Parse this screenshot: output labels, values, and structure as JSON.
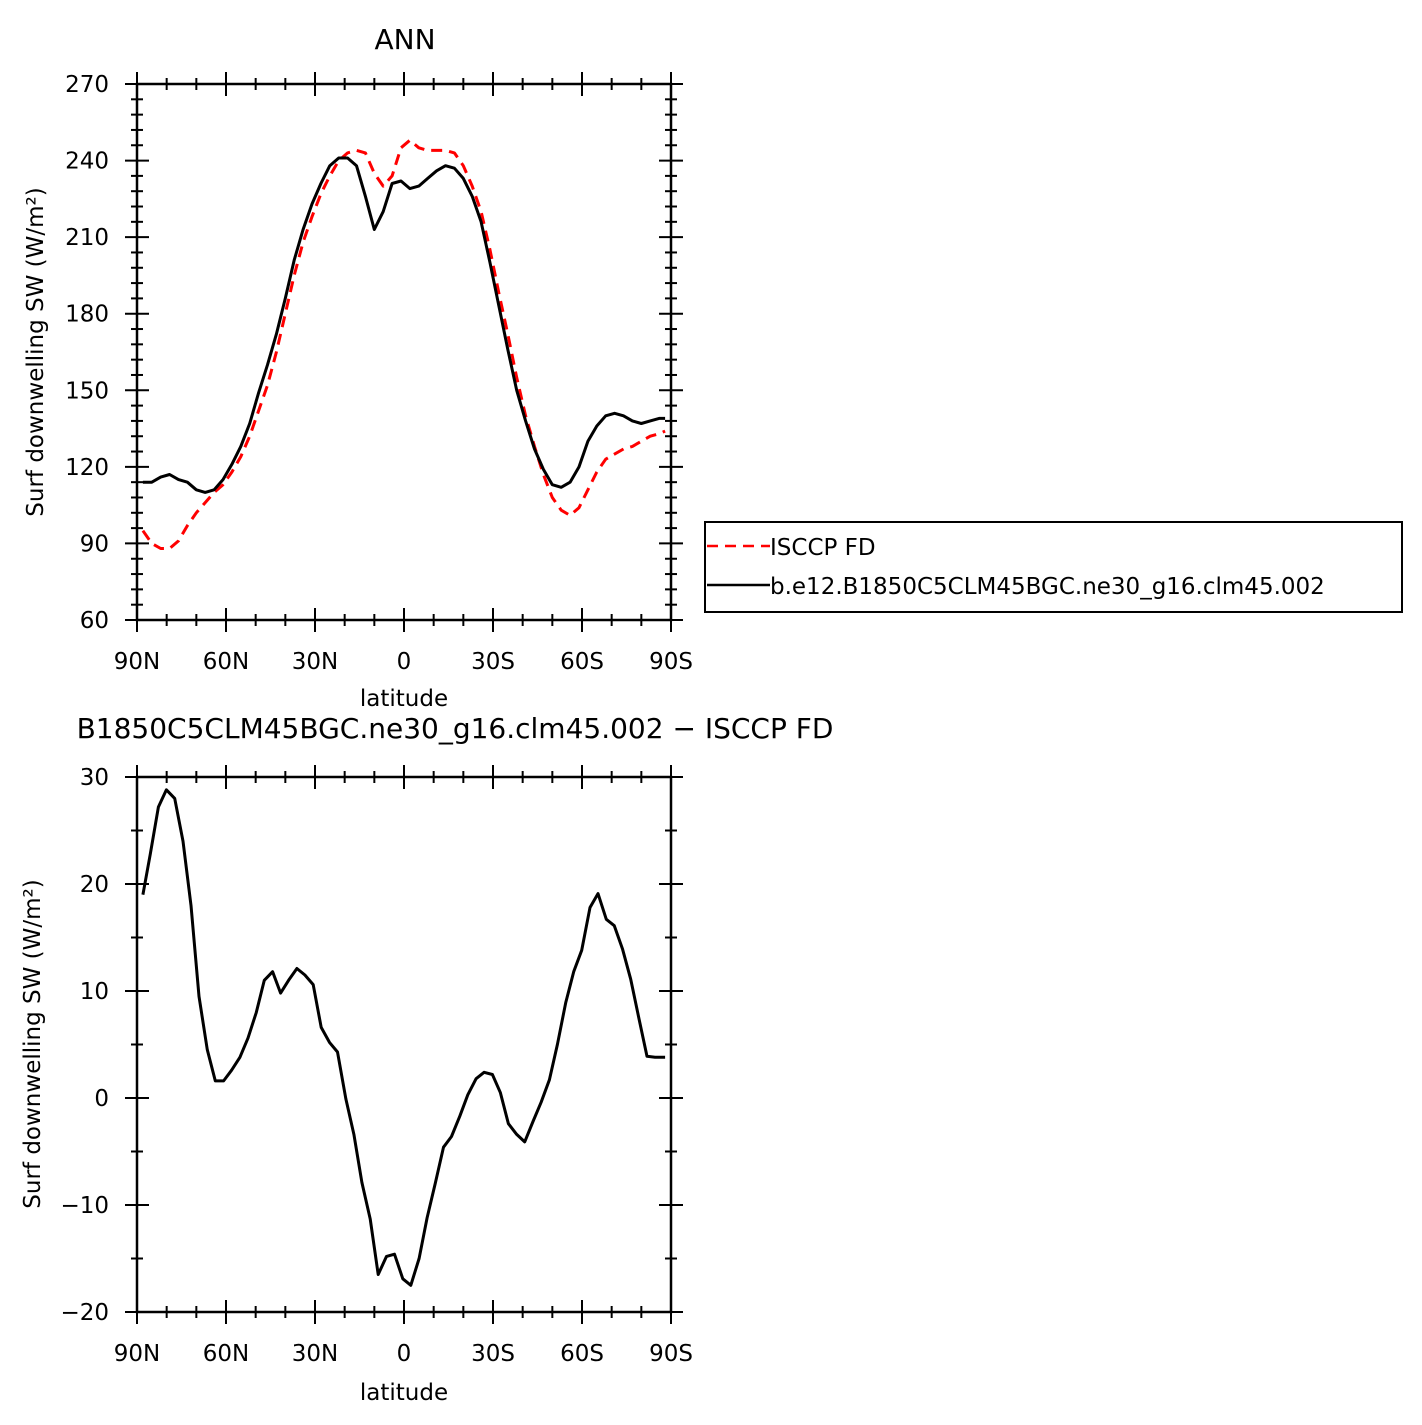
{
  "chart_data": [
    {
      "type": "line",
      "title": "ANN",
      "xlabel": "latitude",
      "ylabel": "Surf downwelling SW (W/m²)",
      "xlim": [
        -90,
        90
      ],
      "ylim": [
        60,
        270
      ],
      "x_ticks": [
        {
          "value": -90,
          "label": "90N"
        },
        {
          "value": -60,
          "label": "60N"
        },
        {
          "value": -30,
          "label": "30N"
        },
        {
          "value": 0,
          "label": "0"
        },
        {
          "value": 30,
          "label": "30S"
        },
        {
          "value": 60,
          "label": "60S"
        },
        {
          "value": 90,
          "label": "90S"
        }
      ],
      "y_ticks": [
        60,
        90,
        120,
        150,
        180,
        210,
        240,
        270
      ],
      "series": [
        {
          "name": "ISCCP FD",
          "color": "#ff0000",
          "style": "dashed",
          "x": [
            -88,
            -85,
            -82,
            -79,
            -76,
            -73,
            -70,
            -67,
            -64,
            -61,
            -58,
            -55,
            -52,
            -49,
            -46,
            -43,
            -40,
            -37,
            -34,
            -31,
            -28,
            -25,
            -22,
            -19,
            -16,
            -13,
            -10,
            -7,
            -4,
            -1,
            2,
            5,
            8,
            11,
            14,
            17,
            20,
            23,
            26,
            29,
            32,
            35,
            38,
            41,
            44,
            47,
            50,
            53,
            56,
            59,
            62,
            65,
            68,
            71,
            74,
            77,
            80,
            83,
            86,
            88
          ],
          "y": [
            95,
            90,
            88,
            88,
            91,
            97,
            102,
            106,
            110,
            113,
            118,
            124,
            132,
            142,
            152,
            165,
            180,
            195,
            208,
            218,
            227,
            234,
            240,
            243,
            244,
            243,
            235,
            230,
            234,
            245,
            248,
            245,
            244,
            244,
            244,
            243,
            238,
            230,
            220,
            205,
            188,
            172,
            155,
            140,
            128,
            117,
            108,
            103,
            101,
            104,
            111,
            118,
            123,
            125,
            127,
            128,
            130,
            132,
            133,
            134
          ]
        },
        {
          "name": "b.e12.B1850C5CLM45BGC.ne30_g16.clm45.002",
          "color": "#000000",
          "style": "solid",
          "x": [
            -88,
            -85,
            -82,
            -79,
            -76,
            -73,
            -70,
            -67,
            -64,
            -61,
            -58,
            -55,
            -52,
            -49,
            -46,
            -43,
            -40,
            -37,
            -34,
            -31,
            -28,
            -25,
            -22,
            -19,
            -16,
            -13,
            -10,
            -7,
            -4,
            -1,
            2,
            5,
            8,
            11,
            14,
            17,
            20,
            23,
            26,
            29,
            32,
            35,
            38,
            41,
            44,
            47,
            50,
            53,
            56,
            59,
            62,
            65,
            68,
            71,
            74,
            77,
            80,
            83,
            86,
            88
          ],
          "y": [
            114,
            114,
            116,
            117,
            115,
            114,
            111,
            110,
            111,
            115,
            121,
            128,
            137,
            149,
            160,
            172,
            186,
            201,
            213,
            223,
            231,
            238,
            241,
            241,
            238,
            226,
            213,
            220,
            231,
            232,
            229,
            230,
            233,
            236,
            238,
            237,
            233,
            226,
            216,
            200,
            183,
            166,
            150,
            138,
            127,
            119,
            113,
            112,
            114,
            120,
            130,
            136,
            140,
            141,
            140,
            138,
            137,
            138,
            139,
            139
          ]
        }
      ]
    },
    {
      "type": "line",
      "title": "B1850C5CLM45BGC.ne30_g16.clm45.002 − ISCCP FD",
      "xlabel": "latitude",
      "ylabel": "Surf downwelling SW (W/m²)",
      "xlim": [
        -90,
        90
      ],
      "ylim": [
        -20,
        30
      ],
      "x_ticks": [
        {
          "value": -90,
          "label": "90N"
        },
        {
          "value": -60,
          "label": "60N"
        },
        {
          "value": -30,
          "label": "30N"
        },
        {
          "value": 0,
          "label": "0"
        },
        {
          "value": 30,
          "label": "30S"
        },
        {
          "value": 60,
          "label": "60S"
        },
        {
          "value": 90,
          "label": "90S"
        }
      ],
      "y_ticks": [
        {
          "value": -20,
          "label": "−20"
        },
        {
          "value": -10,
          "label": "−10"
        },
        {
          "value": 0,
          "label": "0"
        },
        {
          "value": 10,
          "label": "10"
        },
        {
          "value": 20,
          "label": "20"
        },
        {
          "value": 30,
          "label": "30"
        }
      ],
      "series": [
        {
          "color": "#000000",
          "style": "solid",
          "x": [
            -88,
            -85.5,
            -82.8,
            -80.1,
            -77.3,
            -74.5,
            -71.8,
            -69.1,
            -66.3,
            -63.6,
            -60.8,
            -58.1,
            -55.3,
            -52.6,
            -49.8,
            -47.1,
            -44.3,
            -41.6,
            -38.9,
            -36.1,
            -33.4,
            -30.6,
            -27.9,
            -25.1,
            -22.4,
            -19.6,
            -16.9,
            -14.2,
            -11.4,
            -8.7,
            -5.9,
            -3.2,
            -0.4,
            2.3,
            5.1,
            7.8,
            10.5,
            13.3,
            16,
            18.8,
            21.5,
            24.3,
            27,
            29.8,
            32.5,
            35.2,
            38,
            40.7,
            43.5,
            46.2,
            49,
            51.7,
            54.5,
            57.2,
            59.9,
            62.7,
            65.4,
            68.2,
            70.9,
            73.7,
            76.4,
            79.2,
            81.9,
            84.6,
            87.4,
            88
          ],
          "y": [
            19,
            22.8,
            27.2,
            28.8,
            28,
            24,
            18,
            9.5,
            4.5,
            1.6,
            1.6,
            2.6,
            3.8,
            5.6,
            8,
            11,
            11.8,
            9.8,
            11,
            12.1,
            11.5,
            10.6,
            6.6,
            5.2,
            4.3,
            -0.1,
            -3.4,
            -7.9,
            -11.3,
            -16.5,
            -14.8,
            -14.6,
            -16.9,
            -17.5,
            -15,
            -11.2,
            -8,
            -4.6,
            -3.6,
            -1.7,
            0.3,
            1.8,
            2.4,
            2.2,
            0.5,
            -2.4,
            -3.4,
            -4.1,
            -2.2,
            -0.4,
            1.7,
            5,
            8.9,
            11.8,
            13.8,
            17.8,
            19.1,
            16.7,
            16.1,
            13.9,
            11.1,
            7.4,
            3.9,
            3.8,
            3.8,
            3.8
          ]
        }
      ]
    }
  ],
  "legend": {
    "entries": [
      {
        "label": "ISCCP FD",
        "color": "#ff0000",
        "style": "dashed"
      },
      {
        "label": "b.e12.B1850C5CLM45BGC.ne30_g16.clm45.002",
        "color": "#000000",
        "style": "solid"
      }
    ]
  }
}
